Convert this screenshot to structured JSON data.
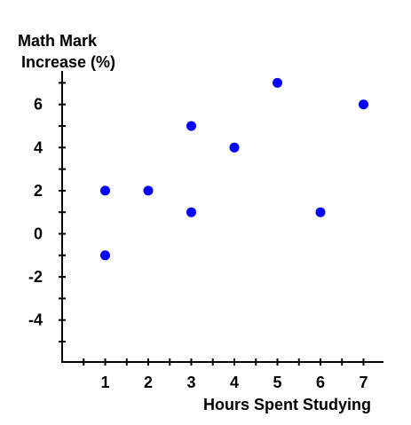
{
  "chart_data": {
    "type": "scatter",
    "ylabel_line1": "Math Mark",
    "ylabel_line2": "Increase (%)",
    "xlabel": "Hours Spent Studying",
    "xlim": [
      0,
      7.5
    ],
    "ylim": [
      -6,
      7.5
    ],
    "x_ticks": [
      1,
      2,
      3,
      4,
      5,
      6,
      7
    ],
    "x_minor_ticks": [
      0.5,
      1.5,
      2.5,
      3.5,
      4.5,
      5.5,
      6.5
    ],
    "y_ticks": [
      -4,
      -2,
      0,
      2,
      4,
      6
    ],
    "y_minor_ticks": [
      -5,
      -3,
      -1,
      1,
      3,
      5,
      7
    ],
    "grid": false,
    "marker_color": "#0000ff",
    "points": [
      {
        "x": 1,
        "y": 2
      },
      {
        "x": 1,
        "y": -1
      },
      {
        "x": 2,
        "y": 2
      },
      {
        "x": 3,
        "y": 5
      },
      {
        "x": 3,
        "y": 1
      },
      {
        "x": 4,
        "y": 4
      },
      {
        "x": 5,
        "y": 7
      },
      {
        "x": 6,
        "y": 1
      },
      {
        "x": 7,
        "y": 6
      }
    ]
  }
}
